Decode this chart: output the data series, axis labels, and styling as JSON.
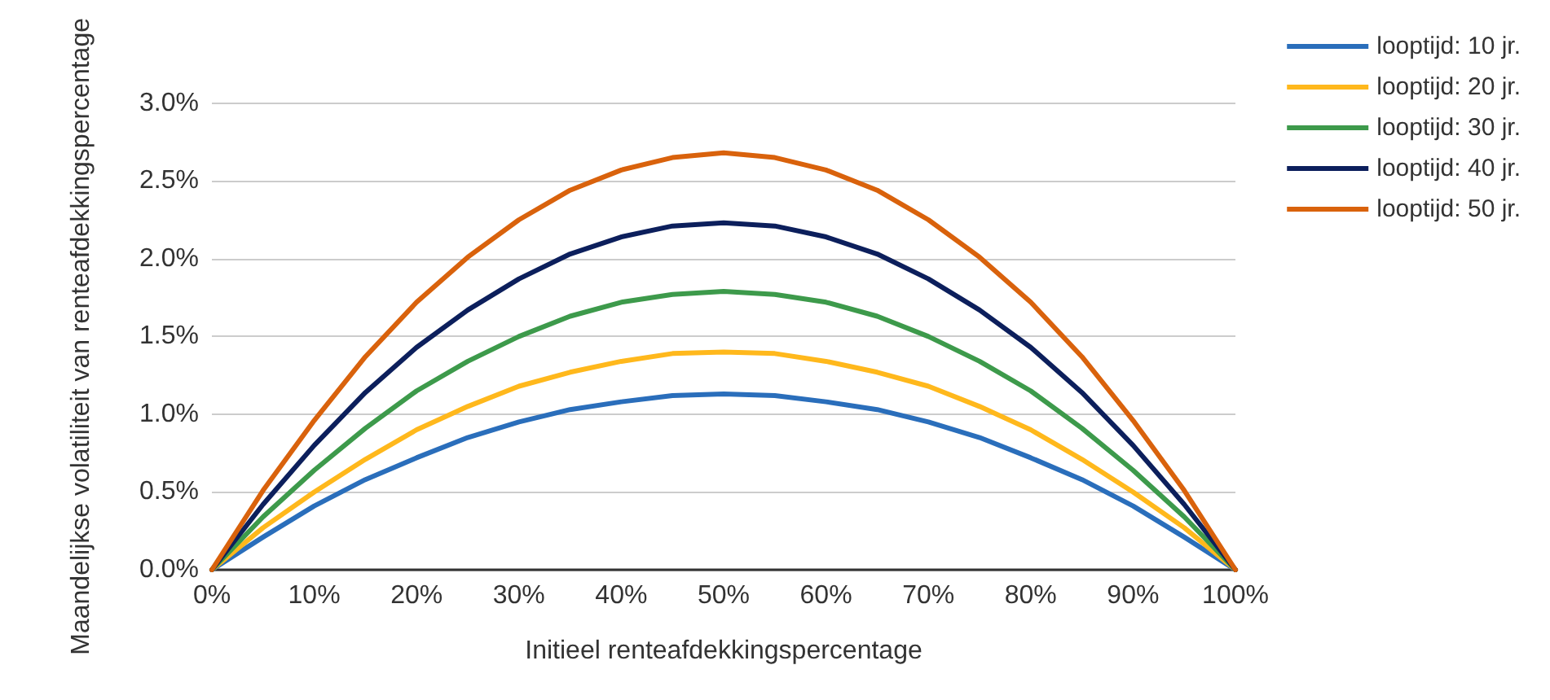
{
  "chart_data": {
    "type": "line",
    "xlabel": "Initieel renteafdekkingspercentage",
    "ylabel": "Maandelijkse volatiliteit van renteafdekkingspercentage",
    "x": [
      0,
      5,
      10,
      15,
      20,
      25,
      30,
      35,
      40,
      45,
      50,
      55,
      60,
      65,
      70,
      75,
      80,
      85,
      90,
      95,
      100
    ],
    "series": [
      {
        "name": "looptijd: 10 jr.",
        "color": "#2a6ebb",
        "values": [
          0,
          0.21,
          0.41,
          0.58,
          0.72,
          0.85,
          0.95,
          1.03,
          1.08,
          1.12,
          1.13,
          1.12,
          1.08,
          1.03,
          0.95,
          0.85,
          0.72,
          0.58,
          0.41,
          0.21,
          0
        ]
      },
      {
        "name": "looptijd: 20 jr.",
        "color": "#ffb81c",
        "values": [
          0,
          0.27,
          0.5,
          0.71,
          0.9,
          1.05,
          1.18,
          1.27,
          1.34,
          1.39,
          1.4,
          1.39,
          1.34,
          1.27,
          1.18,
          1.05,
          0.9,
          0.71,
          0.5,
          0.27,
          0
        ]
      },
      {
        "name": "looptijd: 30 jr.",
        "color": "#3d9a4b",
        "values": [
          0,
          0.34,
          0.64,
          0.91,
          1.15,
          1.34,
          1.5,
          1.63,
          1.72,
          1.77,
          1.79,
          1.77,
          1.72,
          1.63,
          1.5,
          1.34,
          1.15,
          0.91,
          0.64,
          0.34,
          0
        ]
      },
      {
        "name": "looptijd: 40 jr.",
        "color": "#0c1f5c",
        "values": [
          0,
          0.42,
          0.8,
          1.14,
          1.43,
          1.67,
          1.87,
          2.03,
          2.14,
          2.21,
          2.23,
          2.21,
          2.14,
          2.03,
          1.87,
          1.67,
          1.43,
          1.14,
          0.8,
          0.42,
          0
        ]
      },
      {
        "name": "looptijd: 50 jr.",
        "color": "#d9620c",
        "values": [
          0,
          0.51,
          0.96,
          1.37,
          1.72,
          2.01,
          2.25,
          2.44,
          2.57,
          2.65,
          2.68,
          2.65,
          2.57,
          2.44,
          2.25,
          2.01,
          1.72,
          1.37,
          0.96,
          0.51,
          0
        ]
      }
    ],
    "xlim": [
      0,
      100
    ],
    "xticks": [
      {
        "value": 0,
        "label": "0%"
      },
      {
        "value": 10,
        "label": "10%"
      },
      {
        "value": 20,
        "label": "20%"
      },
      {
        "value": 30,
        "label": "30%"
      },
      {
        "value": 40,
        "label": "40%"
      },
      {
        "value": 50,
        "label": "50%"
      },
      {
        "value": 60,
        "label": "60%"
      },
      {
        "value": 70,
        "label": "70%"
      },
      {
        "value": 80,
        "label": "80%"
      },
      {
        "value": 90,
        "label": "90%"
      },
      {
        "value": 100,
        "label": "100%"
      }
    ],
    "ylim": [
      0,
      3
    ],
    "yticks": [
      {
        "value": 0,
        "label": "0.0%"
      },
      {
        "value": 0.5,
        "label": "0.5%"
      },
      {
        "value": 1,
        "label": "1.0%"
      },
      {
        "value": 1.5,
        "label": "1.5%"
      },
      {
        "value": 2,
        "label": "2.0%"
      },
      {
        "value": 2.5,
        "label": "2.5%"
      },
      {
        "value": 3,
        "label": "3.0%"
      }
    ],
    "grid": "y",
    "legend": "top right",
    "marker": "none",
    "line_style": "solid"
  }
}
